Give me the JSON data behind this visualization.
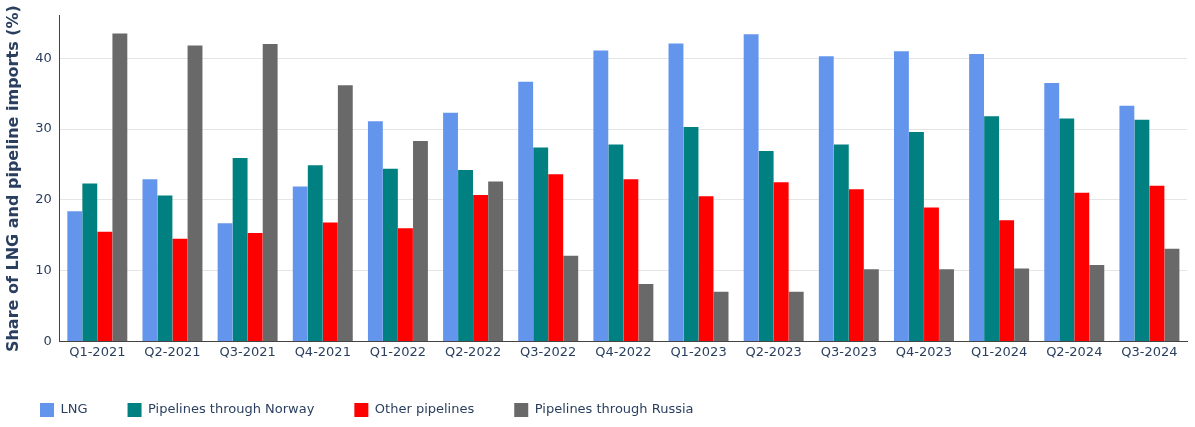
{
  "chart_data": {
    "type": "bar",
    "ylabel": "Share of LNG and pipeline imports (%)",
    "categories": [
      "Q1-2021",
      "Q2-2021",
      "Q3-2021",
      "Q4-2021",
      "Q1-2022",
      "Q2-2022",
      "Q3-2022",
      "Q4-2022",
      "Q1-2023",
      "Q2-2023",
      "Q3-2023",
      "Q4-2023",
      "Q1-2024",
      "Q2-2024",
      "Q3-2024"
    ],
    "series": [
      {
        "name": "LNG",
        "color": "#6495ed",
        "values": [
          18.4,
          22.9,
          16.7,
          21.9,
          31.1,
          32.3,
          36.7,
          41.1,
          42.1,
          43.4,
          40.3,
          41.0,
          40.6,
          36.5,
          33.3
        ]
      },
      {
        "name": "Pipelines through Norway",
        "color": "#008080",
        "values": [
          22.3,
          20.6,
          25.9,
          24.9,
          24.4,
          24.2,
          27.4,
          27.8,
          30.3,
          26.9,
          27.8,
          29.6,
          31.8,
          31.5,
          31.3
        ]
      },
      {
        "name": "Other pipelines",
        "color": "#ff0000",
        "values": [
          15.5,
          14.5,
          15.3,
          16.8,
          16.0,
          20.7,
          23.6,
          22.9,
          20.5,
          22.5,
          21.5,
          18.9,
          17.1,
          21.0,
          22.0
        ]
      },
      {
        "name": "Pipelines through Russia",
        "color": "#696969",
        "values": [
          43.5,
          41.8,
          42.0,
          36.2,
          28.3,
          22.6,
          12.1,
          8.1,
          7.0,
          7.0,
          10.2,
          10.2,
          10.3,
          10.8,
          13.1
        ]
      }
    ],
    "ylim": [
      0,
      46
    ],
    "yticks": [
      0,
      10,
      20,
      30,
      40
    ],
    "grid": "y",
    "legend": "bottom left"
  }
}
